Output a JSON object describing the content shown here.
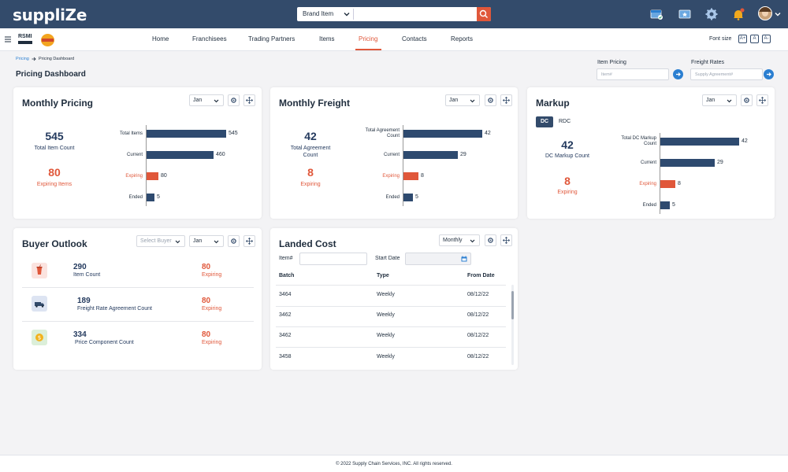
{
  "app": {
    "logo": "suppliZe"
  },
  "search": {
    "scope": "Brand Item"
  },
  "nav": {
    "items": [
      "Home",
      "Franchisees",
      "Trading Partners",
      "Items",
      "Pricing",
      "Contacts",
      "Reports"
    ],
    "active": "Pricing"
  },
  "font_size": {
    "label": "Font size",
    "options": [
      "A+",
      "A",
      "A-"
    ]
  },
  "breadcrumb": {
    "parent": "Pricing",
    "current": "Pricing Dashboard"
  },
  "page_title": "Pricing Dashboard",
  "quick": {
    "item_pricing": {
      "label": "Item Pricing",
      "placeholder": "Item#"
    },
    "freight_rates": {
      "label": "Freight Rates",
      "placeholder": "Supply Agreement#"
    }
  },
  "monthly_pricing": {
    "title": "Monthly Pricing",
    "month": "Jan",
    "total_value": "545",
    "total_label": "Total Item Count",
    "expiring_value": "80",
    "expiring_label": "Expiring Items",
    "bars": [
      {
        "label": "Total Items",
        "value": 545
      },
      {
        "label": "Current",
        "value": 460
      },
      {
        "label": "Expiring",
        "value": 80,
        "highlight": true
      },
      {
        "label": "Ended",
        "value": 5
      }
    ]
  },
  "monthly_freight": {
    "title": "Monthly Freight",
    "month": "Jan",
    "total_value": "42",
    "total_label": "Total Agreement Count",
    "expiring_value": "8",
    "expiring_label": "Expiring",
    "bars": [
      {
        "label": "Total Agreement Count",
        "value": 42
      },
      {
        "label": "Current",
        "value": 29
      },
      {
        "label": "Expiring",
        "value": 8,
        "highlight": true
      },
      {
        "label": "Ended",
        "value": 5
      }
    ]
  },
  "markup": {
    "title": "Markup",
    "month": "Jan",
    "tabs": [
      "DC",
      "RDC"
    ],
    "active_tab": "DC",
    "total_value": "42",
    "total_label": "DC Markup Count",
    "expiring_value": "8",
    "expiring_label": "Expiring",
    "bars": [
      {
        "label": "Total DC Markup Count",
        "value": 42
      },
      {
        "label": "Current",
        "value": 29
      },
      {
        "label": "Expiring",
        "value": 8,
        "highlight": true
      },
      {
        "label": "Ended",
        "value": 5
      }
    ]
  },
  "buyer_outlook": {
    "title": "Buyer Outlook",
    "buyer_placeholder": "Select Buyer",
    "month": "Jan",
    "rows": [
      {
        "value": "290",
        "label": "Item Count",
        "expiring_value": "80",
        "expiring_label": "Expiring",
        "icon": "drink-cup-icon"
      },
      {
        "value": "189",
        "label": "Freight Rate Agreement Count",
        "expiring_value": "80",
        "expiring_label": "Expiring",
        "icon": "truck-icon"
      },
      {
        "value": "334",
        "label": "Price Component Count",
        "expiring_value": "80",
        "expiring_label": "Expiring",
        "icon": "dollar-coin-icon"
      }
    ]
  },
  "landed_cost": {
    "title": "Landed Cost",
    "period": "Monthly",
    "item_label": "Item#",
    "start_date_label": "Start Date",
    "columns": [
      "Batch",
      "Type",
      "From Date"
    ],
    "rows": [
      [
        "3464",
        "Weekly",
        "08/12/22"
      ],
      [
        "3462",
        "Weekly",
        "08/12/22"
      ],
      [
        "3462",
        "Weekly",
        "08/12/22"
      ],
      [
        "3458",
        "Weekly",
        "08/12/22"
      ]
    ]
  },
  "footer": {
    "copyright": "© 2022 Supply Chain Services, INC. All rights reserved."
  },
  "colors": {
    "header": "#334b6b",
    "accent": "#e0573a",
    "bar": "#2e4a6f",
    "link": "#2b7fd1"
  }
}
